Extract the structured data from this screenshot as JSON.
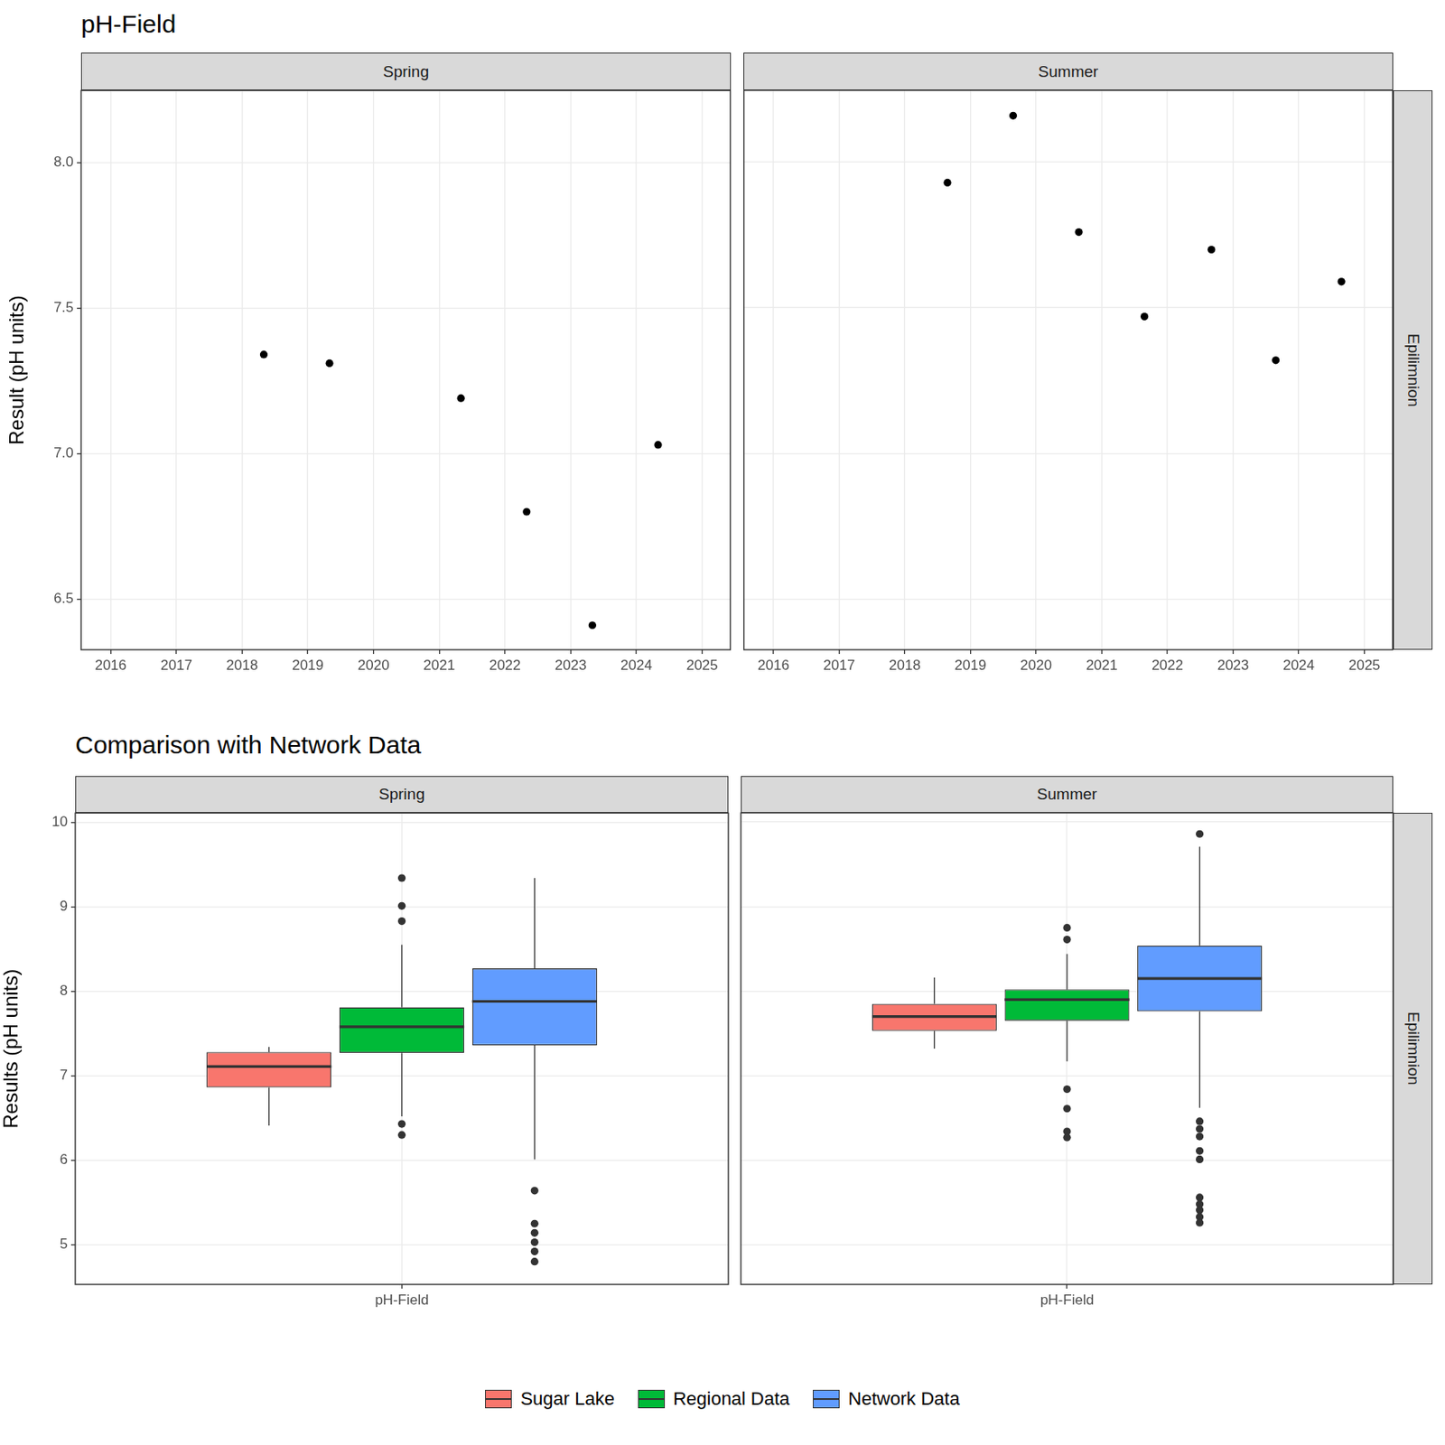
{
  "chart_data": [
    {
      "type": "scatter",
      "title": "pH-Field",
      "ylabel": "Result (pH units)",
      "row_label": "Epilimnion",
      "color": "#000000",
      "marker": "circle",
      "grid": true,
      "xlim": [
        2015.55,
        2025.43
      ],
      "xticks": [
        2016,
        2017,
        2018,
        2019,
        2020,
        2021,
        2022,
        2023,
        2024,
        2025
      ],
      "ylim": [
        6.326,
        8.247
      ],
      "yticks": [
        6.5,
        {
          "value": 7,
          "label": "7.0"
        },
        7.5,
        {
          "value": 8,
          "label": "8.0"
        }
      ],
      "panels": [
        {
          "title": "Spring",
          "x": [
            2018.33,
            2019.33,
            2021.33,
            2022.33,
            2023.33,
            2024.33
          ],
          "values": [
            7.34,
            7.31,
            7.19,
            6.8,
            6.41,
            7.03
          ]
        },
        {
          "title": "Summer",
          "x": [
            2018.65,
            2019.65,
            2020.65,
            2021.65,
            2022.67,
            2023.65,
            2024.65
          ],
          "values": [
            7.93,
            8.16,
            7.76,
            7.47,
            7.7,
            7.32,
            7.59
          ]
        }
      ]
    },
    {
      "type": "boxplot",
      "title": "Comparison with Network Data",
      "ylabel": "Results (pH units)",
      "row_label": "Epilimnion",
      "categories": [
        "pH-Field"
      ],
      "grid": true,
      "legend": "bottom",
      "ylim": [
        4.53,
        10.11
      ],
      "yticks": [
        5,
        6,
        7,
        8,
        9,
        10
      ],
      "series": [
        {
          "name": "Sugar Lake",
          "color": "#F8766D"
        },
        {
          "name": "Regional Data",
          "color": "#00BA38"
        },
        {
          "name": "Network Data",
          "color": "#619CFF"
        }
      ],
      "panels": [
        {
          "title": "Spring",
          "boxes": [
            {
              "whisker_low": 6.41,
              "q1": 6.86,
              "median": 7.11,
              "q3": 7.28,
              "whisker_high": 7.34,
              "outliers": []
            },
            {
              "whisker_low": 6.52,
              "q1": 7.27,
              "median": 7.58,
              "q3": 7.81,
              "whisker_high": 8.55,
              "outliers": [
                9.34,
                9.01,
                8.83,
                6.43,
                6.3
              ]
            },
            {
              "whisker_low": 6.01,
              "q1": 7.36,
              "median": 7.88,
              "q3": 8.27,
              "whisker_high": 9.34,
              "outliers": [
                5.64,
                5.25,
                5.14,
                5.03,
                4.92,
                4.8
              ]
            }
          ]
        },
        {
          "title": "Summer",
          "boxes": [
            {
              "whisker_low": 7.32,
              "q1": 7.53,
              "median": 7.7,
              "q3": 7.85,
              "whisker_high": 8.16,
              "outliers": []
            },
            {
              "whisker_low": 7.17,
              "q1": 7.65,
              "median": 7.9,
              "q3": 8.02,
              "whisker_high": 8.44,
              "outliers": [
                8.75,
                8.61,
                6.84,
                6.61,
                6.34,
                6.27
              ]
            },
            {
              "whisker_low": 6.62,
              "q1": 7.76,
              "median": 8.15,
              "q3": 8.54,
              "whisker_high": 9.71,
              "outliers": [
                9.86,
                6.46,
                6.37,
                6.28,
                6.11,
                6.01,
                5.56,
                5.48,
                5.41,
                5.33,
                5.26
              ]
            }
          ]
        }
      ]
    }
  ]
}
